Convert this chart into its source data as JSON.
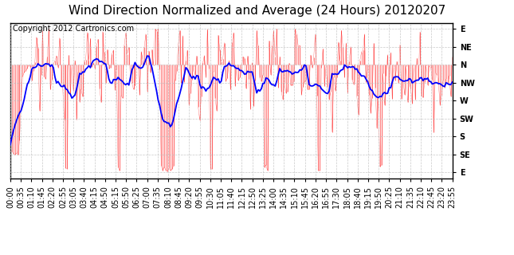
{
  "title": "Wind Direction Normalized and Average (24 Hours) 20120207",
  "copyright": "Copyright 2012 Cartronics.com",
  "background_color": "#ffffff",
  "plot_bg_color": "#ffffff",
  "grid_color": "#bbbbbb",
  "ytick_labels": [
    "E",
    "NE",
    "N",
    "NW",
    "W",
    "SW",
    "S",
    "SE",
    "E"
  ],
  "ytick_values": [
    360,
    315,
    270,
    225,
    180,
    135,
    90,
    45,
    0
  ],
  "ylim": [
    -15,
    375
  ],
  "red_line_color": "#ff0000",
  "blue_line_color": "#0000ff",
  "title_fontsize": 11,
  "copyright_fontsize": 7,
  "tick_fontsize": 7,
  "xtick_labels": [
    "00:00",
    "00:35",
    "01:10",
    "01:45",
    "02:20",
    "02:55",
    "03:05",
    "03:40",
    "04:15",
    "04:50",
    "05:15",
    "05:50",
    "06:25",
    "07:00",
    "07:35",
    "08:10",
    "08:45",
    "09:20",
    "09:55",
    "10:30",
    "11:05",
    "11:40",
    "12:15",
    "12:50",
    "13:25",
    "14:00",
    "14:35",
    "15:10",
    "15:45",
    "16:20",
    "16:55",
    "17:30",
    "18:05",
    "18:40",
    "19:15",
    "19:50",
    "20:25",
    "21:10",
    "21:35",
    "22:10",
    "22:45",
    "23:20",
    "23:55"
  ]
}
